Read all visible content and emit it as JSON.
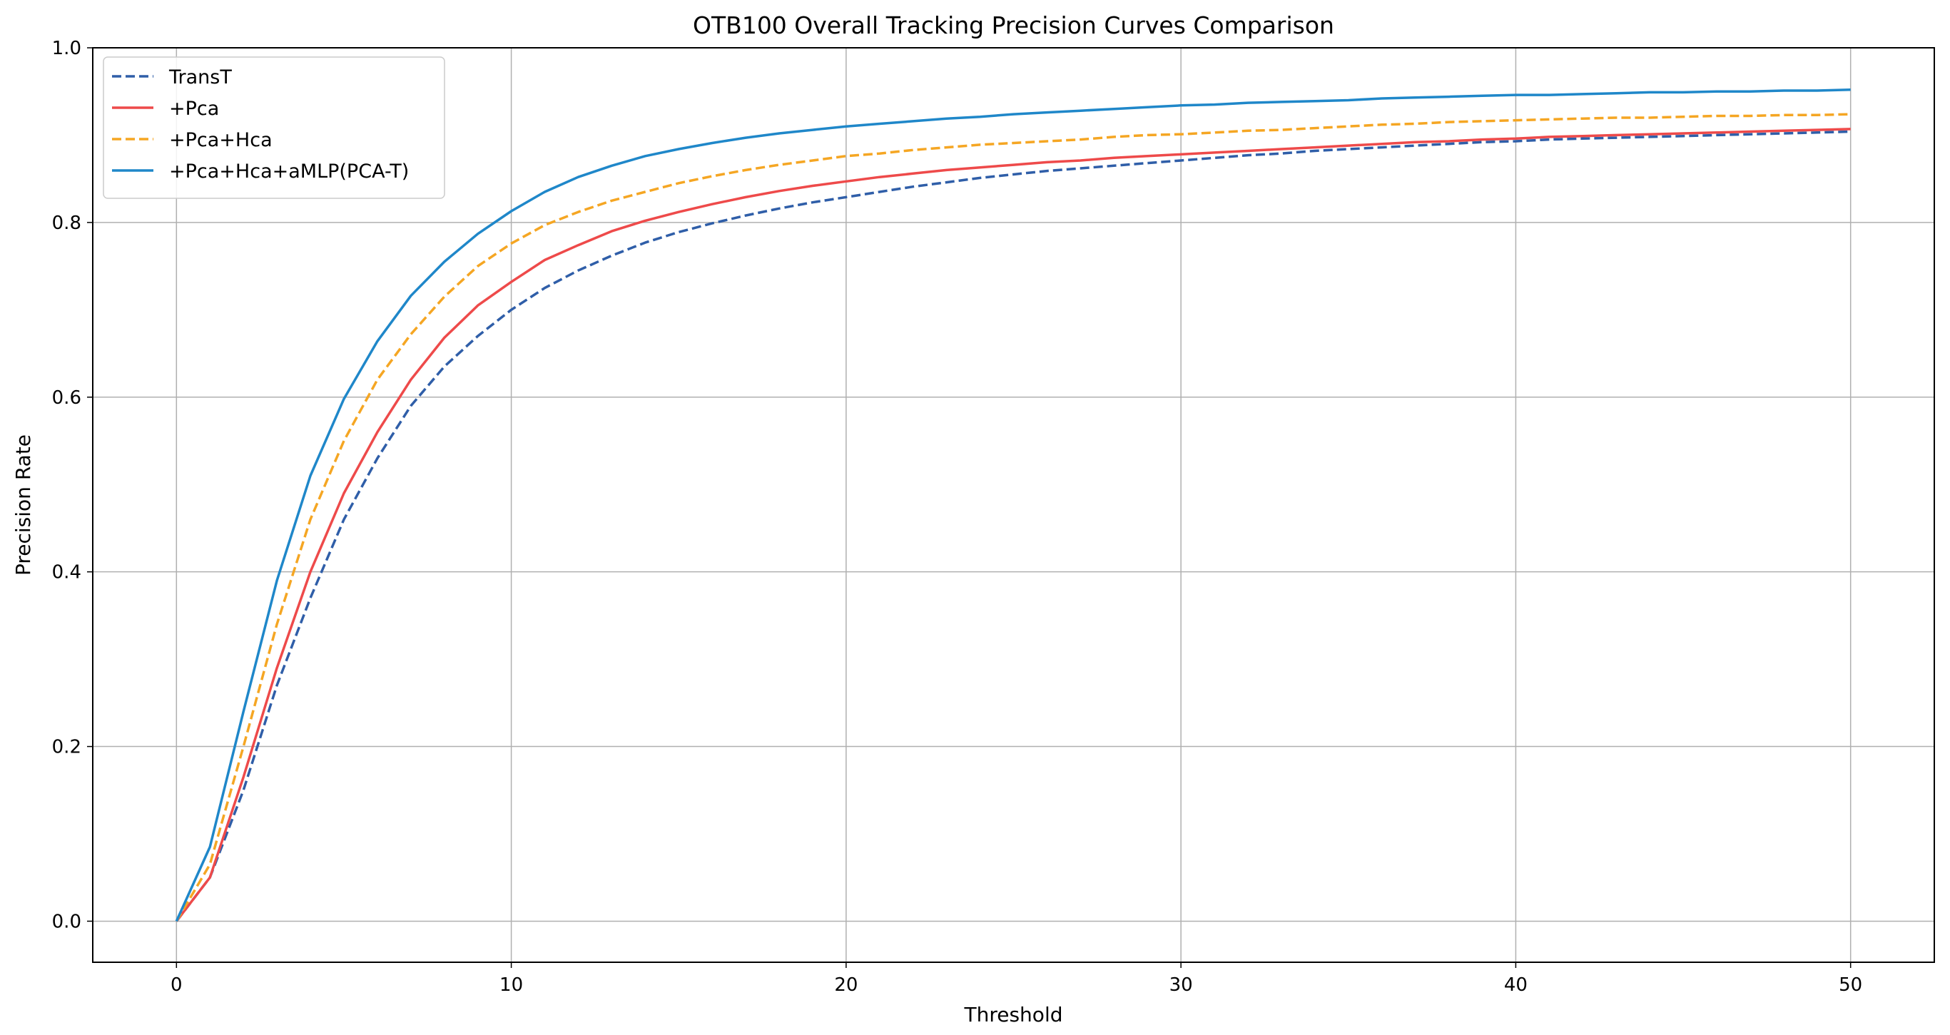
{
  "chart_data": {
    "type": "line",
    "title": "OTB100 Overall Tracking Precision Curves Comparison",
    "xlabel": "Threshold",
    "ylabel": "Precision Rate",
    "xlim": [
      -2.5,
      52.5
    ],
    "ylim": [
      -0.047,
      1.0
    ],
    "xticks": [
      0,
      10,
      20,
      30,
      40,
      50
    ],
    "xtick_labels": [
      "0",
      "10",
      "20",
      "30",
      "40",
      "50"
    ],
    "yticks": [
      0.0,
      0.2,
      0.4,
      0.6,
      0.8,
      1.0
    ],
    "ytick_labels": [
      "0.0",
      "0.2",
      "0.4",
      "0.6",
      "0.8",
      "1.0"
    ],
    "grid": true,
    "legend_position": "top-left",
    "x": [
      0,
      1,
      2,
      3,
      4,
      5,
      6,
      7,
      8,
      9,
      10,
      11,
      12,
      13,
      14,
      15,
      16,
      17,
      18,
      19,
      20,
      21,
      22,
      23,
      24,
      25,
      26,
      27,
      28,
      29,
      30,
      31,
      32,
      33,
      34,
      35,
      36,
      37,
      38,
      39,
      40,
      41,
      42,
      43,
      44,
      45,
      46,
      47,
      48,
      49,
      50
    ],
    "series": [
      {
        "name": "TransT",
        "color": "#2f5ea8",
        "dash": "dashed",
        "values": [
          0.0,
          0.05,
          0.15,
          0.27,
          0.37,
          0.46,
          0.53,
          0.59,
          0.635,
          0.67,
          0.7,
          0.725,
          0.745,
          0.762,
          0.777,
          0.789,
          0.799,
          0.808,
          0.816,
          0.823,
          0.829,
          0.835,
          0.841,
          0.846,
          0.851,
          0.855,
          0.859,
          0.862,
          0.865,
          0.868,
          0.871,
          0.874,
          0.877,
          0.879,
          0.882,
          0.884,
          0.886,
          0.888,
          0.89,
          0.892,
          0.893,
          0.895,
          0.896,
          0.897,
          0.898,
          0.899,
          0.9,
          0.901,
          0.902,
          0.903,
          0.904
        ]
      },
      {
        "name": "+Pca",
        "color": "#ee4a4a",
        "dash": "solid",
        "values": [
          0.0,
          0.05,
          0.165,
          0.29,
          0.4,
          0.49,
          0.56,
          0.62,
          0.668,
          0.705,
          0.732,
          0.757,
          0.774,
          0.79,
          0.802,
          0.812,
          0.821,
          0.829,
          0.836,
          0.842,
          0.847,
          0.852,
          0.856,
          0.86,
          0.863,
          0.866,
          0.869,
          0.871,
          0.874,
          0.876,
          0.878,
          0.88,
          0.882,
          0.884,
          0.886,
          0.888,
          0.89,
          0.892,
          0.893,
          0.895,
          0.896,
          0.898,
          0.899,
          0.9,
          0.901,
          0.902,
          0.903,
          0.904,
          0.905,
          0.906,
          0.907
        ]
      },
      {
        "name": "+Pca+Hca",
        "color": "#f5a623",
        "dash": "dashed",
        "values": [
          0.0,
          0.065,
          0.2,
          0.34,
          0.46,
          0.55,
          0.62,
          0.672,
          0.715,
          0.75,
          0.776,
          0.797,
          0.812,
          0.825,
          0.835,
          0.845,
          0.853,
          0.86,
          0.866,
          0.871,
          0.876,
          0.879,
          0.883,
          0.886,
          0.889,
          0.891,
          0.893,
          0.895,
          0.898,
          0.9,
          0.901,
          0.903,
          0.905,
          0.906,
          0.908,
          0.91,
          0.912,
          0.913,
          0.915,
          0.916,
          0.917,
          0.918,
          0.919,
          0.92,
          0.92,
          0.921,
          0.922,
          0.922,
          0.923,
          0.923,
          0.924
        ]
      },
      {
        "name": "+Pca+Hca+aMLP(PCA-T)",
        "color": "#1f87c9",
        "dash": "solid",
        "values": [
          0.0,
          0.085,
          0.24,
          0.39,
          0.51,
          0.598,
          0.664,
          0.716,
          0.755,
          0.787,
          0.813,
          0.835,
          0.852,
          0.865,
          0.876,
          0.884,
          0.891,
          0.897,
          0.902,
          0.906,
          0.91,
          0.913,
          0.916,
          0.919,
          0.921,
          0.924,
          0.926,
          0.928,
          0.93,
          0.932,
          0.934,
          0.935,
          0.937,
          0.938,
          0.939,
          0.94,
          0.942,
          0.943,
          0.944,
          0.945,
          0.946,
          0.946,
          0.947,
          0.948,
          0.949,
          0.949,
          0.95,
          0.95,
          0.951,
          0.951,
          0.952
        ]
      }
    ]
  }
}
